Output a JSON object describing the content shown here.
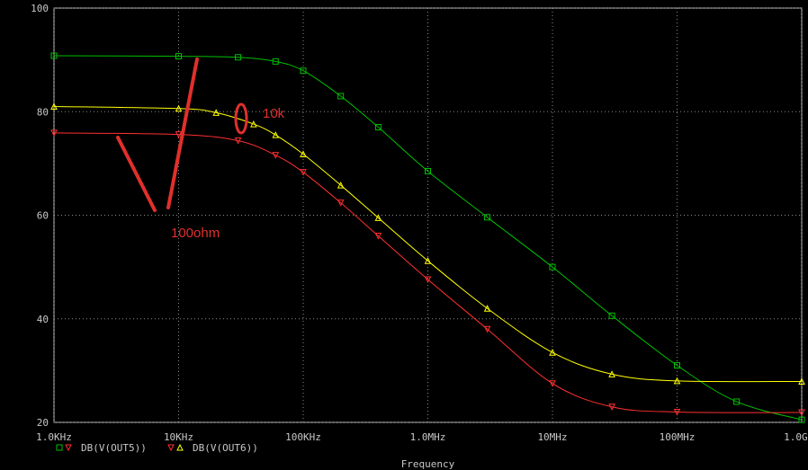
{
  "chart_data": {
    "type": "line",
    "title": "",
    "xlabel": "Frequency",
    "ylabel": "",
    "x_scale": "log",
    "xlim": [
      1000,
      1000000000
    ],
    "ylim": [
      20,
      100
    ],
    "grid": true,
    "x_ticks": [
      {
        "value": 1000,
        "label": "1.0KHz"
      },
      {
        "value": 10000,
        "label": "10KHz"
      },
      {
        "value": 100000,
        "label": "100KHz"
      },
      {
        "value": 1000000,
        "label": "1.0MHz"
      },
      {
        "value": 10000000,
        "label": "10MHz"
      },
      {
        "value": 100000000,
        "label": "100MHz"
      },
      {
        "value": 1000000000,
        "label": "1.0GHz"
      }
    ],
    "y_ticks": [
      {
        "value": 20,
        "label": "20"
      },
      {
        "value": 40,
        "label": "40"
      },
      {
        "value": 60,
        "label": "60"
      },
      {
        "value": 80,
        "label": "80"
      },
      {
        "value": 100,
        "label": "100"
      }
    ],
    "legend_position": "bottom-left",
    "series": [
      {
        "name": "DB(V(OUT5))",
        "color": "#00c000",
        "marker": "square",
        "x": [
          1000,
          10000,
          30000,
          60000,
          100000,
          200000,
          400000,
          1000000,
          3000000,
          10000000,
          30000000,
          100000000,
          300000000,
          1000000000
        ],
        "y": [
          90.8,
          90.7,
          90.5,
          89.7,
          87.9,
          83.0,
          77.0,
          68.5,
          59.6,
          50.0,
          40.6,
          31.0,
          24.0,
          20.5
        ]
      },
      {
        "name": "",
        "color": "#ffff00",
        "marker": "triangle-up",
        "x": [
          1000,
          10000,
          20000,
          40000,
          60000,
          100000,
          200000,
          400000,
          1000000,
          3000000,
          10000000,
          30000000,
          100000000,
          1000000000
        ],
        "y": [
          81.0,
          80.6,
          79.8,
          77.6,
          75.5,
          71.8,
          65.8,
          59.5,
          51.2,
          42.0,
          33.5,
          29.3,
          28.0,
          27.9
        ]
      },
      {
        "name": "DB(V(OUT6))",
        "color": "#ff3030",
        "marker": "triangle-down",
        "x": [
          1000,
          10000,
          30000,
          60000,
          100000,
          200000,
          400000,
          1000000,
          3000000,
          10000000,
          30000000,
          100000000,
          1000000000
        ],
        "y": [
          75.9,
          75.6,
          74.4,
          71.6,
          68.3,
          62.4,
          56.0,
          47.6,
          38.0,
          27.5,
          23.0,
          22.0,
          21.9
        ]
      }
    ],
    "annotations": [
      {
        "text": "10k",
        "color": "#e0302c"
      },
      {
        "text": "100ohm",
        "color": "#e0302c"
      }
    ]
  }
}
